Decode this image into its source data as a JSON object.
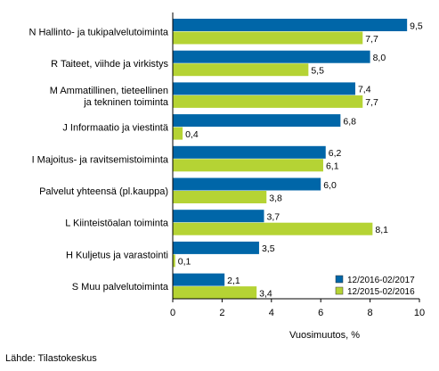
{
  "chart_data": {
    "type": "bar",
    "orientation": "horizontal",
    "categories": [
      [
        "N Hallinto- ja tukipalvelutoiminta"
      ],
      [
        "R Taiteet, viihde ja virkistys"
      ],
      [
        "M Ammatillinen, tieteellinen",
        "ja tekninen toiminta"
      ],
      [
        "J Informaatio ja viestintä"
      ],
      [
        "I Majoitus- ja ravitsemistoiminta"
      ],
      [
        "Palvelut yhteensä (pl.kauppa)"
      ],
      [
        "L Kiinteistöalan toiminta"
      ],
      [
        "H Kuljetus ja varastointi"
      ],
      [
        "S Muu palvelutoiminta"
      ]
    ],
    "series": [
      {
        "name": "12/2016-02/2017",
        "color": "#0066a8",
        "values": [
          9.5,
          8.0,
          7.4,
          6.8,
          6.2,
          6.0,
          3.7,
          3.5,
          2.1
        ],
        "labels": [
          "9,5",
          "8,0",
          "7,4",
          "6,8",
          "6,2",
          "6,0",
          "3,7",
          "3,5",
          "2,1"
        ]
      },
      {
        "name": "12/2015-02/2016",
        "color": "#b5d334",
        "values": [
          7.7,
          5.5,
          7.7,
          0.4,
          6.1,
          3.8,
          8.1,
          0.1,
          3.4
        ],
        "labels": [
          "7,7",
          "5,5",
          "7,7",
          "0,4",
          "6,1",
          "3,8",
          "8,1",
          "0,1",
          "3,4"
        ]
      }
    ],
    "xlabel": "Vuosimuutos, %",
    "ylabel": "",
    "xlim": [
      0,
      10
    ],
    "xticks": [
      0,
      2,
      4,
      6,
      8,
      10
    ],
    "grid": "none",
    "legend_position": "bottom-right",
    "source": "Lähde: Tilastokeskus"
  }
}
